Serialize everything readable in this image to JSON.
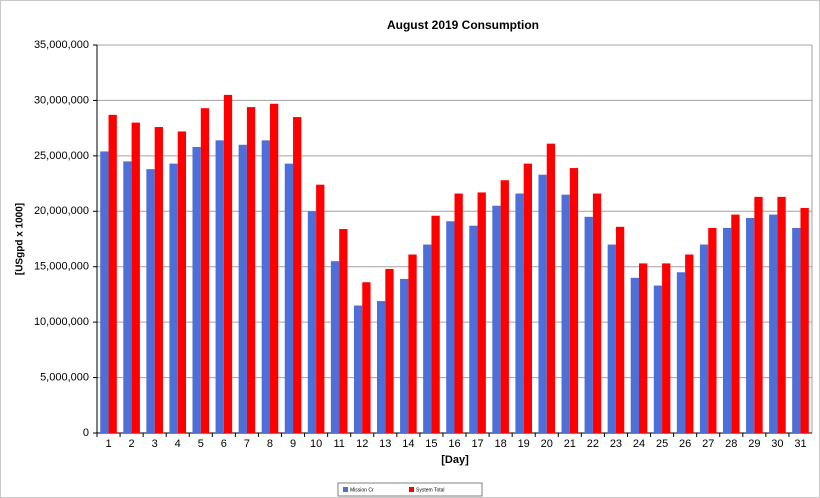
{
  "chart_data": {
    "type": "bar",
    "title": "August 2019 Consumption",
    "x_label": "[Day]",
    "y_label": "[USgpd x 1000]",
    "categories": [
      "1",
      "2",
      "3",
      "4",
      "5",
      "6",
      "7",
      "8",
      "9",
      "10",
      "11",
      "12",
      "13",
      "14",
      "15",
      "16",
      "17",
      "18",
      "19",
      "20",
      "21",
      "22",
      "23",
      "24",
      "25",
      "26",
      "27",
      "28",
      "29",
      "30",
      "31"
    ],
    "series": [
      {
        "name": "Mission Cr",
        "color": "#4f6fd8",
        "values": [
          25400000,
          24500000,
          23800000,
          24300000,
          25800000,
          26400000,
          26000000,
          26400000,
          24300000,
          20000000,
          15500000,
          11500000,
          11900000,
          13900000,
          17000000,
          19100000,
          18700000,
          20500000,
          21600000,
          23300000,
          21500000,
          19500000,
          17000000,
          14000000,
          13300000,
          14500000,
          17000000,
          18500000,
          19400000,
          19700000,
          18500000
        ]
      },
      {
        "name": "System Total",
        "color": "#ff0000",
        "values": [
          28700000,
          28000000,
          27600000,
          27200000,
          29300000,
          30500000,
          29400000,
          29700000,
          28500000,
          22400000,
          18400000,
          13600000,
          14800000,
          16100000,
          19600000,
          21600000,
          21700000,
          22800000,
          24300000,
          26100000,
          23900000,
          21600000,
          18600000,
          15300000,
          15300000,
          16100000,
          18500000,
          19700000,
          21300000,
          21300000,
          20300000
        ]
      }
    ],
    "ylim": [
      0,
      35000000
    ],
    "yticks": [
      0,
      {
        "value": 5000000,
        "label": "5,000,000"
      },
      {
        "value": 10000000,
        "label": "10,000,000"
      },
      {
        "value": 15000000,
        "label": "15,000,000"
      },
      {
        "value": 20000000,
        "label": "20,000,000"
      },
      {
        "value": 25000000,
        "label": "25,000,000"
      },
      {
        "value": 30000000,
        "label": "30,000,000"
      },
      {
        "value": 35000000,
        "label": "35,000,000"
      }
    ],
    "grid": true,
    "legend": "bottom"
  }
}
